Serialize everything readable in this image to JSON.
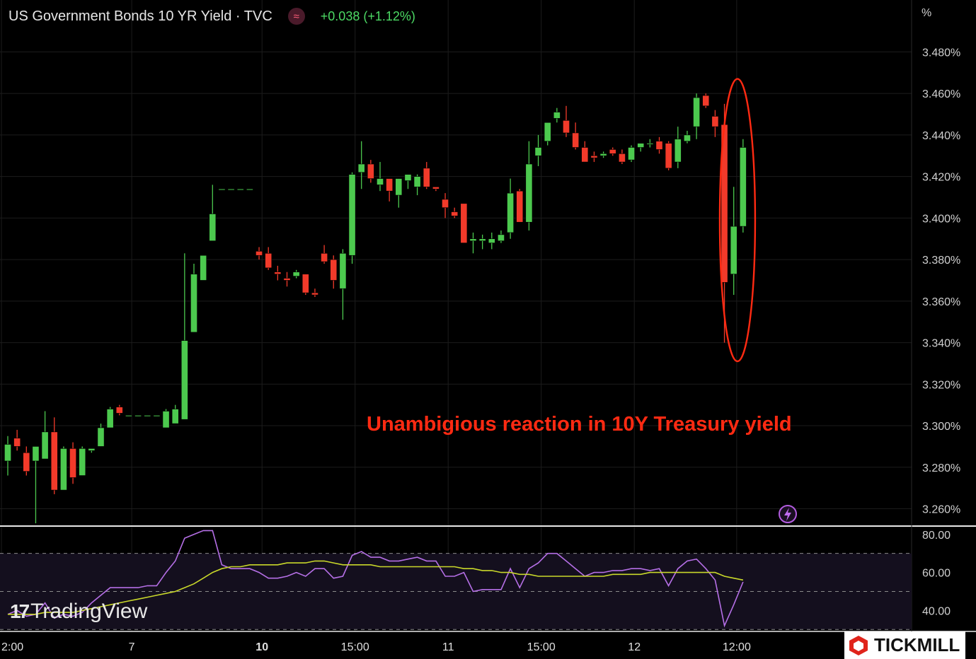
{
  "header": {
    "symbol": "US Government Bonds 10 YR Yield · TVC",
    "badge_icon": "≈",
    "change": "+0.038 (+1.12%)"
  },
  "annotation": "Unambigious reaction in 10Y Treasury yield",
  "watermark": "TradingView",
  "brand": "TICKMILL",
  "colors": {
    "up": "#4cc94e",
    "down": "#f23a2a",
    "rsi": "#b56fe6",
    "rsi_ma": "#c9d82a",
    "ellipse": "#ff2a12"
  },
  "chart_data": [
    {
      "type": "candlestick",
      "ylabel": "%",
      "ylim": [
        3.252,
        3.505
      ],
      "yticks": [
        "3.260%",
        "3.280%",
        "3.300%",
        "3.320%",
        "3.340%",
        "3.360%",
        "3.380%",
        "3.400%",
        "3.420%",
        "3.440%",
        "3.460%",
        "3.480%"
      ],
      "xticks": [
        {
          "label": "2:00",
          "at": 0
        },
        {
          "label": "7",
          "at": 14
        },
        {
          "label": "10",
          "at": 28
        },
        {
          "label": "15:00",
          "at": 38
        },
        {
          "label": "11",
          "at": 48
        },
        {
          "label": "15:00",
          "at": 58
        },
        {
          "label": "12",
          "at": 68
        },
        {
          "label": "12:00",
          "at": 79
        }
      ],
      "candles": [
        [
          3.283,
          3.295,
          3.276,
          3.291
        ],
        [
          3.294,
          3.298,
          3.288,
          3.29
        ],
        [
          3.287,
          3.29,
          3.276,
          3.278
        ],
        [
          3.283,
          3.29,
          3.253,
          3.29
        ],
        [
          3.284,
          3.307,
          3.284,
          3.297
        ],
        [
          3.297,
          3.304,
          3.267,
          3.269
        ],
        [
          3.269,
          3.29,
          3.269,
          3.289
        ],
        [
          3.289,
          3.292,
          3.272,
          3.275
        ],
        [
          3.276,
          3.29,
          3.276,
          3.289
        ],
        [
          3.288,
          3.289,
          3.287,
          3.289
        ],
        [
          3.29,
          3.301,
          3.29,
          3.299
        ],
        [
          3.299,
          3.309,
          3.299,
          3.308
        ],
        [
          3.309,
          3.31,
          3.305,
          3.306
        ],
        [
          3.305,
          3.305,
          3.305,
          3.305
        ],
        [
          3.305,
          3.305,
          3.305,
          3.305
        ],
        [
          3.305,
          3.305,
          3.305,
          3.305
        ],
        [
          3.305,
          3.305,
          3.305,
          3.305
        ],
        [
          3.299,
          3.308,
          3.299,
          3.307
        ],
        [
          3.301,
          3.31,
          3.301,
          3.308
        ],
        [
          3.303,
          3.383,
          3.303,
          3.341
        ],
        [
          3.345,
          3.378,
          3.345,
          3.373
        ],
        [
          3.37,
          3.382,
          3.37,
          3.382
        ],
        [
          3.389,
          3.416,
          3.389,
          3.402
        ],
        [
          3.414,
          3.414,
          3.414,
          3.414
        ],
        [
          3.414,
          3.414,
          3.414,
          3.414
        ],
        [
          3.414,
          3.414,
          3.414,
          3.414
        ],
        [
          3.414,
          3.414,
          3.414,
          3.414
        ],
        [
          3.384,
          3.386,
          3.38,
          3.382
        ],
        [
          3.383,
          3.386,
          3.375,
          3.376
        ],
        [
          3.374,
          3.377,
          3.37,
          3.373
        ],
        [
          3.371,
          3.374,
          3.367,
          3.37
        ],
        [
          3.372,
          3.375,
          3.371,
          3.374
        ],
        [
          3.373,
          3.373,
          3.363,
          3.364
        ],
        [
          3.364,
          3.366,
          3.362,
          3.363
        ],
        [
          3.383,
          3.387,
          3.378,
          3.379
        ],
        [
          3.38,
          3.382,
          3.366,
          3.37
        ],
        [
          3.366,
          3.385,
          3.351,
          3.383
        ],
        [
          3.382,
          3.422,
          3.378,
          3.421
        ],
        [
          3.422,
          3.437,
          3.414,
          3.426
        ],
        [
          3.426,
          3.428,
          3.417,
          3.419
        ],
        [
          3.416,
          3.427,
          3.413,
          3.419
        ],
        [
          3.419,
          3.418,
          3.408,
          3.413
        ],
        [
          3.411,
          3.419,
          3.405,
          3.419
        ],
        [
          3.418,
          3.421,
          3.414,
          3.421
        ],
        [
          3.415,
          3.421,
          3.411,
          3.42
        ],
        [
          3.424,
          3.427,
          3.414,
          3.415
        ],
        [
          3.415,
          3.415,
          3.413,
          3.414
        ],
        [
          3.409,
          3.412,
          3.4,
          3.405
        ],
        [
          3.403,
          3.405,
          3.4,
          3.401
        ],
        [
          3.407,
          3.407,
          3.388,
          3.388
        ],
        [
          3.389,
          3.393,
          3.383,
          3.39
        ],
        [
          3.389,
          3.392,
          3.385,
          3.39
        ],
        [
          3.388,
          3.393,
          3.385,
          3.39
        ],
        [
          3.389,
          3.394,
          3.388,
          3.392
        ],
        [
          3.393,
          3.419,
          3.39,
          3.412
        ],
        [
          3.413,
          3.414,
          3.398,
          3.398
        ],
        [
          3.398,
          3.437,
          3.394,
          3.426
        ],
        [
          3.43,
          3.44,
          3.425,
          3.434
        ],
        [
          3.437,
          3.446,
          3.435,
          3.446
        ],
        [
          3.448,
          3.453,
          3.446,
          3.451
        ],
        [
          3.447,
          3.454,
          3.439,
          3.441
        ],
        [
          3.441,
          3.446,
          3.433,
          3.434
        ],
        [
          3.434,
          3.437,
          3.427,
          3.427
        ],
        [
          3.43,
          3.432,
          3.427,
          3.429
        ],
        [
          3.43,
          3.432,
          3.429,
          3.431
        ],
        [
          3.433,
          3.434,
          3.43,
          3.431
        ],
        [
          3.431,
          3.433,
          3.426,
          3.427
        ],
        [
          3.428,
          3.435,
          3.427,
          3.434
        ],
        [
          3.434,
          3.436,
          3.432,
          3.436
        ],
        [
          3.436,
          3.438,
          3.434,
          3.436
        ],
        [
          3.437,
          3.439,
          3.431,
          3.433
        ],
        [
          3.436,
          3.437,
          3.423,
          3.424
        ],
        [
          3.427,
          3.444,
          3.424,
          3.438
        ],
        [
          3.437,
          3.442,
          3.436,
          3.44
        ],
        [
          3.444,
          3.46,
          3.438,
          3.458
        ],
        [
          3.459,
          3.46,
          3.453,
          3.454
        ],
        [
          3.449,
          3.452,
          3.439,
          3.444
        ],
        [
          3.445,
          3.455,
          3.34,
          3.369
        ],
        [
          3.373,
          3.415,
          3.363,
          3.396
        ],
        [
          3.396,
          3.438,
          3.393,
          3.434
        ]
      ],
      "highlight": {
        "ellipse_from": 76.5,
        "ellipse_to": 80.3,
        "y_high": 3.467,
        "y_low": 3.331
      },
      "lightning_icon": "lightning-icon"
    },
    {
      "type": "line",
      "name": "RSI",
      "ylim": [
        29,
        84
      ],
      "yticks": [
        "80.00",
        "60.00",
        "40.00"
      ],
      "bands": [
        70,
        50,
        30
      ],
      "series": [
        {
          "name": "rsi",
          "values": [
            38,
            40,
            37,
            38,
            44,
            36,
            38,
            37,
            39,
            44,
            48,
            52,
            52,
            52,
            52,
            53,
            53,
            60,
            66,
            78,
            80,
            82,
            82,
            64,
            62,
            62,
            62,
            60,
            57,
            57,
            58,
            60,
            58,
            62,
            62,
            57,
            58,
            69,
            71,
            68,
            68,
            66,
            66,
            67,
            68,
            66,
            66,
            58,
            58,
            60,
            50,
            51,
            51,
            51,
            62,
            52,
            62,
            65,
            70,
            70,
            66,
            62,
            58,
            60,
            60,
            61,
            61,
            62,
            62,
            61,
            62,
            53,
            62,
            66,
            67,
            62,
            56,
            32,
            43,
            55
          ]
        },
        {
          "name": "rsi-ma",
          "values": [
            38,
            38,
            38,
            38,
            39,
            39,
            39,
            39,
            40,
            41,
            42,
            43,
            44,
            45,
            46,
            47,
            48,
            49,
            50,
            52,
            54,
            57,
            60,
            62,
            63,
            63,
            64,
            64,
            64,
            64,
            65,
            65,
            65,
            66,
            66,
            65,
            64,
            64,
            64,
            64,
            63,
            63,
            63,
            63,
            63,
            63,
            63,
            63,
            63,
            62,
            62,
            61,
            61,
            60,
            60,
            59,
            59,
            58,
            58,
            58,
            58,
            58,
            58,
            58,
            58,
            59,
            59,
            59,
            59,
            60,
            60,
            60,
            60,
            60,
            60,
            60,
            60,
            58,
            57,
            56
          ]
        }
      ]
    }
  ]
}
